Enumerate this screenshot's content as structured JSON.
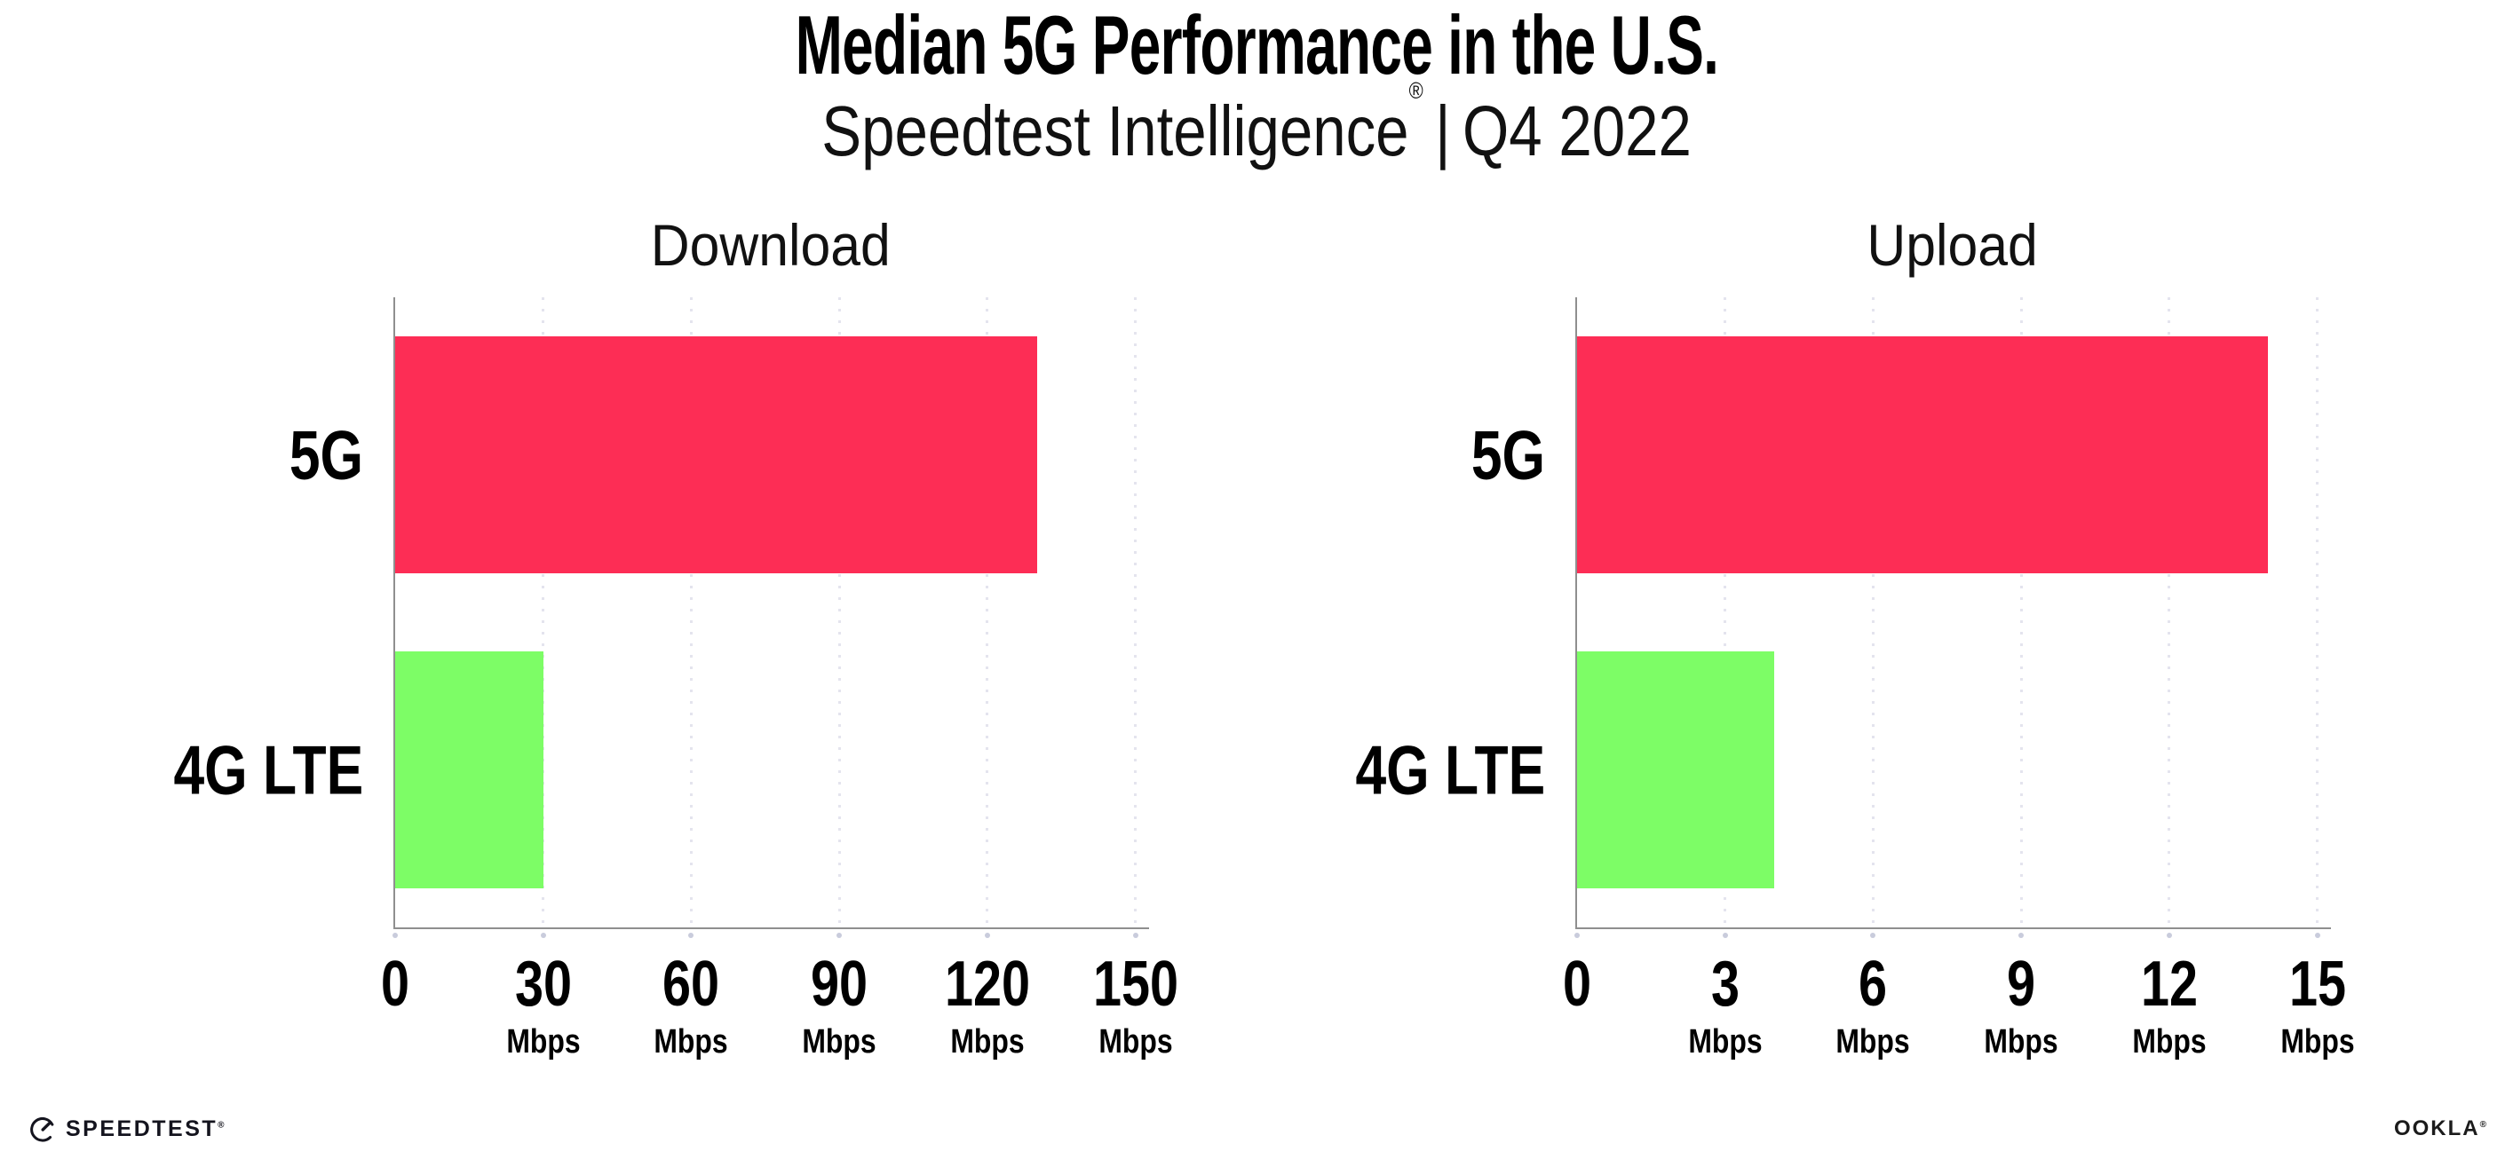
{
  "header": {
    "title": "Median 5G Performance in the U.S.",
    "subtitle": {
      "brand": "Speedtest Intelligence",
      "registered": "®",
      "divider": "|",
      "period": "Q4 2022"
    }
  },
  "chart_data": [
    {
      "type": "bar",
      "orientation": "horizontal",
      "title": "Download",
      "categories": [
        "5G",
        "4G LTE"
      ],
      "values": [
        130,
        30
      ],
      "unit": "Mbps",
      "colors": [
        "#FD2D55",
        "#7DFD66"
      ],
      "xlim": [
        0,
        150
      ],
      "grid": "vertical-dotted",
      "legend": "none",
      "ticks": [
        {
          "value": 0,
          "label": "0",
          "unit": ""
        },
        {
          "value": 30,
          "label": "30",
          "unit": "Mbps"
        },
        {
          "value": 60,
          "label": "60",
          "unit": "Mbps"
        },
        {
          "value": 90,
          "label": "90",
          "unit": "Mbps"
        },
        {
          "value": 120,
          "label": "120",
          "unit": "Mbps"
        },
        {
          "value": 150,
          "label": "150",
          "unit": "Mbps"
        }
      ]
    },
    {
      "type": "bar",
      "orientation": "horizontal",
      "title": "Upload",
      "categories": [
        "5G",
        "4G LTE"
      ],
      "values": [
        14,
        4
      ],
      "unit": "Mbps",
      "colors": [
        "#FD2D55",
        "#7DFD66"
      ],
      "xlim": [
        0,
        15
      ],
      "grid": "vertical-dotted",
      "legend": "none",
      "ticks": [
        {
          "value": 0,
          "label": "0",
          "unit": ""
        },
        {
          "value": 3,
          "label": "3",
          "unit": "Mbps"
        },
        {
          "value": 6,
          "label": "6",
          "unit": "Mbps"
        },
        {
          "value": 9,
          "label": "9",
          "unit": "Mbps"
        },
        {
          "value": 12,
          "label": "12",
          "unit": "Mbps"
        },
        {
          "value": 15,
          "label": "15",
          "unit": "Mbps"
        }
      ]
    }
  ],
  "palette": {
    "bar_5g": "#FD2D55",
    "bar_4g_lte": "#7DFD66",
    "axis": "#8F8F8F",
    "gridline": "#E4E4EE",
    "tick_mark": "#C9CCDC",
    "text": "#000000",
    "background": "#FFFFFF"
  },
  "footer": {
    "speedtest_label": "SPEEDTEST",
    "speedtest_mark": "®",
    "ookla_label": "OOKLA",
    "ookla_mark": "®"
  }
}
